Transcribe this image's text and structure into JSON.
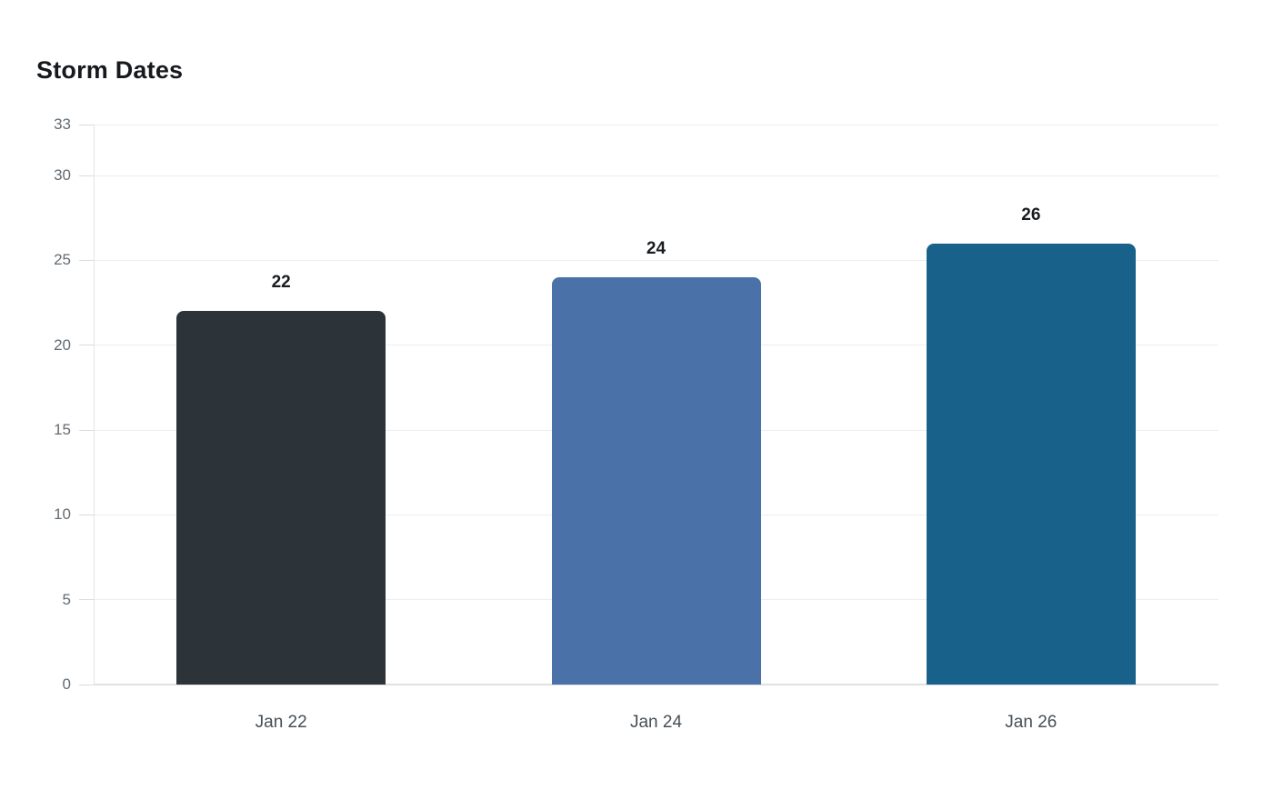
{
  "chart_data": {
    "type": "bar",
    "title": "Storm Dates",
    "categories": [
      "Jan 22",
      "Jan 24",
      "Jan 26"
    ],
    "values": [
      22,
      24,
      26
    ],
    "data_labels": [
      "22",
      "24",
      "26"
    ],
    "bar_colors": [
      "#2c343a",
      "#4a71a8",
      "#17618a"
    ],
    "yticks": [
      0,
      5,
      10,
      15,
      20,
      25,
      30,
      33
    ],
    "ylim": [
      0,
      33
    ],
    "xlabel": "",
    "ylabel": "",
    "grid": true,
    "legend_position": "none"
  },
  "colors": {
    "background": "#ffffff",
    "title": "#16191d",
    "gridline": "#ededed",
    "baseline": "#dfe1e3",
    "axis_line": "#e4e4e4",
    "tick_mark": "#dcdcdc",
    "y_tick_label": "#636c74",
    "x_tick_label": "#454e57",
    "value_label": "#191c20"
  }
}
